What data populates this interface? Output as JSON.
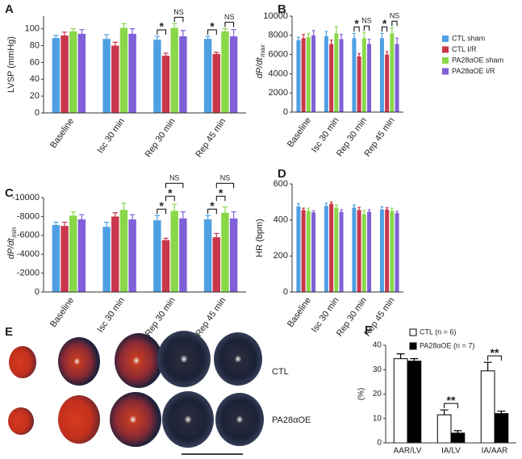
{
  "chart_data": [
    {
      "type": "bar",
      "panel": "A",
      "ylabel": "LVSP (mmHg)",
      "categories": [
        "Baseline",
        "Isc 30 min",
        "Rep 30 min",
        "Rep 45 min"
      ],
      "series": [
        {
          "color": "#4f9fe3",
          "values": [
            89,
            88,
            87,
            88
          ],
          "errors": [
            3,
            5,
            4,
            3
          ]
        },
        {
          "color": "#c9374b",
          "values": [
            92,
            80,
            68,
            70
          ],
          "errors": [
            4,
            4,
            3,
            2
          ]
        },
        {
          "color": "#8ad84a",
          "values": [
            97,
            101,
            101,
            97
          ],
          "errors": [
            3,
            5,
            5,
            3
          ]
        },
        {
          "color": "#8060d8",
          "values": [
            94,
            94,
            91,
            91
          ],
          "errors": [
            5,
            6,
            7,
            8
          ]
        }
      ],
      "ylim": [
        0,
        115
      ],
      "yticks": [
        0,
        20,
        40,
        60,
        80,
        100
      ],
      "brackets": [
        {
          "text": "*",
          "category": "Rep 30 min",
          "between": [
            "CTL sham",
            "CTL I/R"
          ]
        },
        {
          "text": "NS",
          "category": "Rep 30 min",
          "between": [
            "PA28αOE sham",
            "PA28αOE I/R"
          ]
        },
        {
          "text": "*",
          "category": "Rep 45 min",
          "between": [
            "CTL sham",
            "CTL I/R"
          ]
        },
        {
          "text": "NS",
          "category": "Rep 45 min",
          "between": [
            "PA28αOE sham",
            "PA28αOE I/R"
          ]
        }
      ]
    },
    {
      "type": "bar",
      "panel": "B",
      "ylabel": "dP/dt",
      "ylabel_sub": "max",
      "categories": [
        "Baseline",
        "Isc 30 min",
        "Rep 30 min",
        "Rep 45 min"
      ],
      "series": [
        {
          "name": "CTL sham",
          "color": "#4f9fe3",
          "values": [
            7500,
            7900,
            7700,
            7700
          ],
          "errors": [
            300,
            500,
            500,
            500
          ]
        },
        {
          "name": "CTL I/R",
          "color": "#c9374b",
          "values": [
            7700,
            7100,
            5800,
            6000
          ],
          "errors": [
            400,
            400,
            300,
            300
          ]
        },
        {
          "name": "PA28αOE sham",
          "color": "#8ad84a",
          "values": [
            7800,
            8200,
            7700,
            8200
          ],
          "errors": [
            400,
            700,
            600,
            600
          ]
        },
        {
          "name": "PA28αOE I/R",
          "color": "#8060d8",
          "values": [
            8000,
            7600,
            7100,
            7100
          ],
          "errors": [
            500,
            500,
            500,
            600
          ]
        }
      ],
      "ylim": [
        0,
        10000
      ],
      "yticks": [
        0,
        2000,
        4000,
        6000,
        8000,
        10000
      ],
      "brackets": [
        {
          "text": "*",
          "category": "Rep 30 min",
          "between": [
            "CTL sham",
            "CTL I/R"
          ]
        },
        {
          "text": "NS",
          "category": "Rep 30 min",
          "between": [
            "PA28αOE sham",
            "PA28αOE I/R"
          ]
        },
        {
          "text": "*",
          "category": "Rep 45 min",
          "between": [
            "CTL sham",
            "CTL I/R"
          ]
        },
        {
          "text": "NS",
          "category": "Rep 45 min",
          "between": [
            "PA28αOE sham",
            "PA28αOE I/R"
          ]
        }
      ]
    },
    {
      "type": "bar",
      "panel": "C",
      "ylabel": "dP/dt",
      "ylabel_sub": "min",
      "categories": [
        "Baseline",
        "Isc 30 min",
        "Rep 30 min",
        "Rep 45 min"
      ],
      "series": [
        {
          "color": "#4f9fe3",
          "values": [
            -7100,
            -6900,
            -7600,
            -7700
          ],
          "errors": [
            300,
            500,
            500,
            400
          ]
        },
        {
          "color": "#c9374b",
          "values": [
            -7000,
            -8000,
            -5500,
            -5800
          ],
          "errors": [
            400,
            400,
            200,
            400
          ]
        },
        {
          "color": "#8ad84a",
          "values": [
            -8100,
            -8700,
            -8600,
            -8400
          ],
          "errors": [
            400,
            700,
            700,
            600
          ]
        },
        {
          "color": "#8060d8",
          "values": [
            -7700,
            -7700,
            -7800,
            -7800
          ],
          "errors": [
            500,
            500,
            700,
            700
          ]
        }
      ],
      "ylim": [
        0,
        -10000
      ],
      "yticks": [
        0,
        -2000,
        -4000,
        -6000,
        -8000,
        -10000
      ],
      "brackets": [
        {
          "text": "*",
          "category": "Rep 30 min",
          "between": [
            "CTL sham",
            "CTL I/R"
          ]
        },
        {
          "text": "*",
          "category": "Rep 30 min",
          "between": [
            "CTL I/R",
            "PA28αOE sham"
          ]
        },
        {
          "text": "NS",
          "category": "Rep 30 min",
          "between": [
            "CTL I/R",
            "PA28αOE I/R"
          ]
        },
        {
          "text": "*",
          "category": "Rep 45 min",
          "between": [
            "CTL sham",
            "CTL I/R"
          ]
        },
        {
          "text": "*",
          "category": "Rep 45 min",
          "between": [
            "CTL I/R",
            "PA28αOE sham"
          ]
        },
        {
          "text": "NS",
          "category": "Rep 45 min",
          "between": [
            "CTL I/R",
            "PA28αOE I/R"
          ]
        }
      ]
    },
    {
      "type": "bar",
      "panel": "D",
      "ylabel": "HR (bpm)",
      "categories": [
        "Baseline",
        "Isc 30 min",
        "Rep 30 min",
        "Rep 45 min"
      ],
      "series": [
        {
          "color": "#4f9fe3",
          "values": [
            475,
            478,
            468,
            458
          ],
          "errors": [
            15,
            15,
            15,
            15
          ]
        },
        {
          "color": "#c9374b",
          "values": [
            455,
            490,
            455,
            458
          ],
          "errors": [
            10,
            10,
            15,
            10
          ]
        },
        {
          "color": "#8ad84a",
          "values": [
            450,
            468,
            432,
            450
          ],
          "errors": [
            15,
            15,
            20,
            15
          ]
        },
        {
          "color": "#8060d8",
          "values": [
            442,
            445,
            445,
            438
          ],
          "errors": [
            10,
            12,
            12,
            10
          ]
        }
      ],
      "ylim": [
        0,
        600
      ],
      "yticks": [
        0,
        200,
        400,
        600
      ],
      "brackets": []
    },
    {
      "type": "image",
      "panel": "E",
      "labels": [
        "CTL",
        "PA28αOE"
      ]
    },
    {
      "type": "bar",
      "panel": "F",
      "ylabel": "(%)",
      "categories": [
        "AAR/LV",
        "IA/LV",
        "IA/AAR"
      ],
      "series": [
        {
          "name": "CTL (n = 6)",
          "color": "#ffffff",
          "values": [
            34.5,
            11.5,
            29.5
          ],
          "errors": [
            2,
            2,
            3.5
          ]
        },
        {
          "name": "PA28αOE (n = 7)",
          "color": "#000000",
          "values": [
            33.5,
            4,
            12
          ],
          "errors": [
            1,
            1,
            1
          ]
        }
      ],
      "ylim": [
        0,
        40
      ],
      "yticks": [
        0,
        10,
        20,
        30,
        40
      ],
      "brackets": [
        {
          "text": "**",
          "category": "IA/LV",
          "between": [
            "CTL (n = 6)",
            "PA28αOE (n = 7)"
          ]
        },
        {
          "text": "**",
          "category": "IA/AAR",
          "between": [
            "CTL (n = 6)",
            "PA28αOE (n = 7)"
          ]
        }
      ]
    }
  ]
}
